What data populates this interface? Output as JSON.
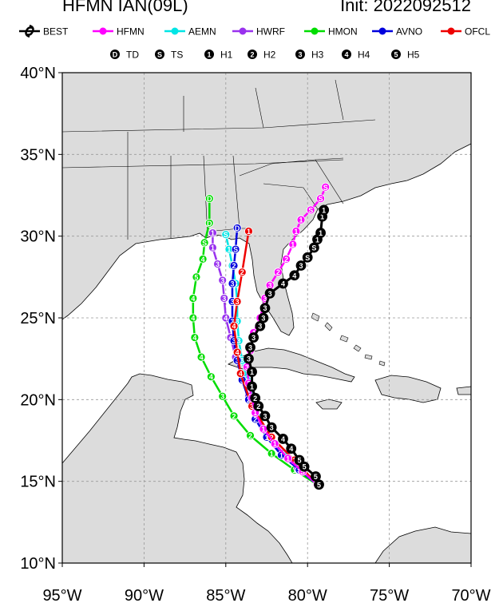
{
  "header": {
    "left_title": "HFMN IAN(09L)",
    "right_title": "Init: 2022092512"
  },
  "legend": {
    "models": [
      {
        "name": "BEST",
        "color": "#000000"
      },
      {
        "name": "HFMN",
        "color": "#ff00ff"
      },
      {
        "name": "AEMN",
        "color": "#00e5e5"
      },
      {
        "name": "HWRF",
        "color": "#9932ee"
      },
      {
        "name": "HMON",
        "color": "#00dd00"
      },
      {
        "name": "AVNO",
        "color": "#0000dd"
      },
      {
        "name": "OFCL",
        "color": "#ee0000"
      }
    ],
    "intensity": [
      {
        "symbol": "D",
        "label": "TD"
      },
      {
        "symbol": "S",
        "label": "TS"
      },
      {
        "symbol": "1",
        "label": "H1"
      },
      {
        "symbol": "2",
        "label": "H2"
      },
      {
        "symbol": "3",
        "label": "H3"
      },
      {
        "symbol": "4",
        "label": "H4"
      },
      {
        "symbol": "5",
        "label": "H5"
      }
    ]
  },
  "map": {
    "lat_labels": [
      "10°N",
      "15°N",
      "20°N",
      "25°N",
      "30°N",
      "35°N",
      "40°N"
    ],
    "lon_labels": [
      "95°W",
      "90°W",
      "85°W",
      "80°W",
      "75°W",
      "70°W"
    ],
    "lat_range": [
      10,
      40
    ],
    "lon_range": [
      -95,
      -70
    ],
    "land_color": "#dcdcdc",
    "ocean_color": "#ffffff"
  },
  "tracks": [
    {
      "model": "BEST",
      "color": "#000000",
      "points": [
        [
          -79.3,
          14.8
        ],
        [
          -79.5,
          15.3
        ],
        [
          -80.2,
          15.9
        ],
        [
          -80.5,
          16.3
        ],
        [
          -81.0,
          17.0
        ],
        [
          -81.5,
          17.6
        ],
        [
          -82.2,
          18.3
        ],
        [
          -82.6,
          19.0
        ],
        [
          -83.0,
          19.6
        ],
        [
          -83.2,
          20.1
        ],
        [
          -83.4,
          20.8
        ],
        [
          -83.4,
          21.7
        ],
        [
          -83.6,
          22.5
        ],
        [
          -83.5,
          23.2
        ],
        [
          -83.3,
          23.8
        ],
        [
          -82.9,
          24.5
        ],
        [
          -82.7,
          25.0
        ],
        [
          -82.6,
          25.6
        ],
        [
          -82.3,
          26.5
        ],
        [
          -81.5,
          27.1
        ],
        [
          -80.8,
          27.6
        ],
        [
          -80.4,
          28.2
        ],
        [
          -80.0,
          28.7
        ],
        [
          -79.6,
          29.3
        ],
        [
          -79.4,
          29.8
        ],
        [
          -79.2,
          30.2
        ],
        [
          -79.1,
          31.2
        ],
        [
          -79.0,
          31.6
        ]
      ],
      "labels": [
        "5",
        "5",
        "5",
        "5",
        "4",
        "4",
        "3",
        "3",
        "2",
        "2",
        "1",
        "1",
        "3",
        "3",
        "3",
        "3",
        "3",
        "3",
        "3",
        "4",
        "4",
        "3",
        "S",
        "S",
        "1",
        "1",
        "1",
        "1"
      ]
    },
    {
      "model": "HFMN",
      "color": "#ff00ff",
      "points": [
        [
          -79.4,
          14.8
        ],
        [
          -80.3,
          15.6
        ],
        [
          -81.2,
          16.4
        ],
        [
          -82.0,
          17.3
        ],
        [
          -82.7,
          18.2
        ],
        [
          -83.2,
          19.2
        ],
        [
          -83.4,
          20.1
        ],
        [
          -83.6,
          21.0
        ],
        [
          -83.7,
          22.0
        ],
        [
          -83.5,
          23.0
        ],
        [
          -83.3,
          24.1
        ],
        [
          -82.9,
          25.0
        ],
        [
          -82.6,
          26.2
        ],
        [
          -82.3,
          27.0
        ],
        [
          -81.8,
          27.8
        ],
        [
          -81.3,
          28.6
        ],
        [
          -80.9,
          29.5
        ],
        [
          -80.7,
          30.3
        ],
        [
          -80.4,
          31.0
        ],
        [
          -79.8,
          31.6
        ],
        [
          -79.2,
          32.3
        ],
        [
          -78.9,
          33.0
        ]
      ],
      "labels": [
        "S",
        "S",
        "1",
        "1",
        "1",
        "1",
        "3",
        "3",
        "3",
        "3",
        "4",
        "3",
        "3",
        "3",
        "2",
        "2",
        "1",
        "1",
        "1",
        "S",
        "S",
        "S"
      ]
    },
    {
      "model": "AEMN",
      "color": "#00e5e5",
      "points": [
        [
          -79.4,
          14.8
        ],
        [
          -80.5,
          15.8
        ],
        [
          -81.4,
          16.6
        ],
        [
          -82.3,
          17.7
        ],
        [
          -82.9,
          18.8
        ],
        [
          -83.3,
          20.0
        ],
        [
          -83.7,
          21.2
        ],
        [
          -84.0,
          22.4
        ],
        [
          -84.2,
          23.6
        ],
        [
          -84.3,
          24.8
        ],
        [
          -84.3,
          26.0
        ],
        [
          -84.4,
          27.1
        ],
        [
          -84.6,
          28.2
        ],
        [
          -84.8,
          29.2
        ],
        [
          -85.0,
          30.1
        ]
      ],
      "labels": [
        "S",
        "1",
        "1",
        "1",
        "2",
        "2",
        "3",
        "3",
        "3",
        "3",
        "3",
        "3",
        "2",
        "1",
        "S"
      ]
    },
    {
      "model": "HWRF",
      "color": "#9932ee",
      "points": [
        [
          -79.4,
          14.8
        ],
        [
          -80.6,
          15.8
        ],
        [
          -81.6,
          16.7
        ],
        [
          -82.4,
          17.8
        ],
        [
          -83.1,
          19.0
        ],
        [
          -83.6,
          20.2
        ],
        [
          -84.0,
          21.4
        ],
        [
          -84.4,
          22.6
        ],
        [
          -84.7,
          23.8
        ],
        [
          -85.0,
          25.0
        ],
        [
          -85.1,
          26.2
        ],
        [
          -85.2,
          27.3
        ],
        [
          -85.5,
          28.3
        ],
        [
          -85.8,
          29.3
        ],
        [
          -85.8,
          30.2
        ]
      ],
      "labels": [
        "5",
        "4",
        "3",
        "3",
        "3",
        "3",
        "3",
        "3",
        "4",
        "4",
        "3",
        "3",
        "3",
        "1",
        "1"
      ]
    },
    {
      "model": "HMON",
      "color": "#00dd00",
      "points": [
        [
          -79.4,
          14.8
        ],
        [
          -80.8,
          15.7
        ],
        [
          -82.2,
          16.7
        ],
        [
          -83.5,
          17.8
        ],
        [
          -84.5,
          19.0
        ],
        [
          -85.2,
          20.2
        ],
        [
          -85.9,
          21.4
        ],
        [
          -86.5,
          22.6
        ],
        [
          -86.9,
          23.8
        ],
        [
          -87.0,
          25.0
        ],
        [
          -87.0,
          26.2
        ],
        [
          -86.8,
          27.5
        ],
        [
          -86.4,
          28.6
        ],
        [
          -86.3,
          29.6
        ],
        [
          -86.0,
          30.8
        ],
        [
          -86.0,
          32.3
        ]
      ],
      "labels": [
        "S",
        "1",
        "1",
        "2",
        "2",
        "3",
        "4",
        "4",
        "4",
        "4",
        "4",
        "5",
        "4",
        "S",
        "D",
        "D"
      ]
    },
    {
      "model": "AVNO",
      "color": "#0000dd",
      "points": [
        [
          -79.4,
          14.8
        ],
        [
          -80.5,
          15.7
        ],
        [
          -81.6,
          16.6
        ],
        [
          -82.5,
          17.7
        ],
        [
          -83.2,
          18.8
        ],
        [
          -83.6,
          20.0
        ],
        [
          -84.0,
          21.2
        ],
        [
          -84.3,
          22.4
        ],
        [
          -84.5,
          23.6
        ],
        [
          -84.6,
          24.8
        ],
        [
          -84.6,
          26.0
        ],
        [
          -84.6,
          27.1
        ],
        [
          -84.5,
          28.2
        ],
        [
          -84.4,
          29.2
        ],
        [
          -84.3,
          30.5
        ]
      ],
      "labels": [
        "S",
        "S",
        "1",
        "1",
        "2",
        "2",
        "3",
        "3",
        "3",
        "3",
        "3",
        "3",
        "2",
        "S",
        "D"
      ]
    },
    {
      "model": "OFCL",
      "color": "#ee0000",
      "points": [
        [
          -79.4,
          14.8
        ],
        [
          -80.8,
          16.3
        ],
        [
          -82.2,
          17.7
        ],
        [
          -83.4,
          19.6
        ],
        [
          -84.1,
          21.6
        ],
        [
          -84.3,
          22.9
        ],
        [
          -84.5,
          24.5
        ],
        [
          -84.3,
          26.0
        ],
        [
          -84.0,
          27.8
        ],
        [
          -83.6,
          30.3
        ]
      ],
      "labels": [
        "S",
        "1",
        "2",
        "3",
        "4",
        "4",
        "4",
        "3",
        "2",
        "1"
      ]
    }
  ]
}
